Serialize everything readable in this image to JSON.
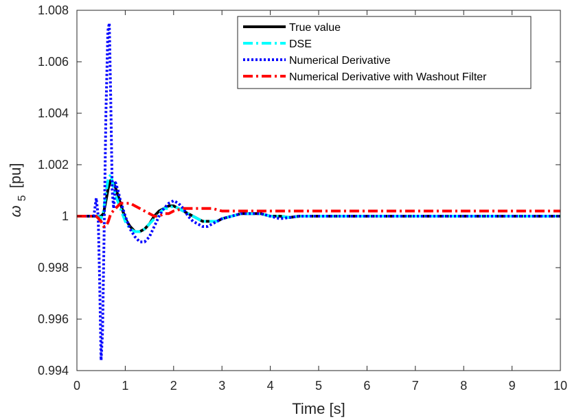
{
  "chart_data": {
    "type": "line",
    "title": "",
    "xlabel": "Time [s]",
    "ylabel_symbol": "ω",
    "ylabel_subscript": "5",
    "ylabel_unit": "[pu]",
    "xlim": [
      0,
      10
    ],
    "ylim": [
      0.994,
      1.008
    ],
    "xticks": [
      0,
      1,
      2,
      3,
      4,
      5,
      6,
      7,
      8,
      9,
      10
    ],
    "xtick_labels": [
      "0",
      "1",
      "2",
      "3",
      "4",
      "5",
      "6",
      "7",
      "8",
      "9",
      "10"
    ],
    "yticks": [
      0.994,
      0.996,
      0.998,
      1.0,
      1.002,
      1.004,
      1.006,
      1.008
    ],
    "ytick_labels": [
      "0.994",
      "0.996",
      "0.998",
      "1",
      "1.002",
      "1.004",
      "1.006",
      "1.008"
    ],
    "grid": false,
    "legend_position": "top-right",
    "series": [
      {
        "name": "True value",
        "color": "#000000",
        "style": "solid",
        "x": [
          0,
          0.45,
          0.5,
          0.55,
          0.6,
          0.65,
          0.7,
          0.75,
          0.8,
          0.9,
          1.0,
          1.1,
          1.2,
          1.3,
          1.4,
          1.5,
          1.6,
          1.7,
          1.8,
          1.9,
          2.0,
          2.1,
          2.2,
          2.3,
          2.4,
          2.5,
          2.6,
          2.7,
          2.8,
          2.9,
          3.0,
          3.2,
          3.4,
          3.6,
          3.8,
          4.0,
          4.2,
          4.4,
          4.6,
          4.8,
          5.0,
          5.5,
          6.0,
          6.5,
          7.0,
          8.0,
          9.0,
          10.0
        ],
        "y": [
          1.0,
          1.0,
          1.0,
          1.0001,
          1.0006,
          1.0011,
          1.0014,
          1.0013,
          1.0011,
          1.0005,
          0.9999,
          0.9996,
          0.9994,
          0.9994,
          0.9995,
          0.9997,
          1.0,
          1.0002,
          1.0003,
          1.0004,
          1.0004,
          1.0003,
          1.0002,
          1.0001,
          1.0,
          0.9999,
          0.9998,
          0.9998,
          0.9998,
          0.9998,
          0.9999,
          1.0,
          1.0001,
          1.0001,
          1.0001,
          1.0,
          1.0,
          0.99995,
          1.0,
          1.0,
          1.0,
          1.0,
          1.0,
          1.0,
          1.0,
          1.0,
          1.0,
          1.0
        ]
      },
      {
        "name": "DSE",
        "color": "#00ffff",
        "style": "dashdot",
        "x": [
          0,
          0.45,
          0.5,
          0.55,
          0.6,
          0.65,
          0.7,
          0.75,
          0.8,
          0.9,
          1.0,
          1.1,
          1.2,
          1.3,
          1.4,
          1.5,
          1.6,
          1.7,
          1.8,
          1.9,
          2.0,
          2.1,
          2.2,
          2.3,
          2.4,
          2.5,
          2.6,
          2.7,
          2.8,
          2.9,
          3.0,
          3.2,
          3.4,
          3.6,
          3.8,
          4.0,
          4.2,
          4.4,
          4.6,
          4.8,
          5.0,
          5.5,
          6.0,
          6.5,
          7.0,
          8.0,
          9.0,
          10.0
        ],
        "y": [
          1.0,
          1.0,
          0.9999,
          1.0002,
          1.0009,
          1.0015,
          1.0016,
          1.0012,
          1.0008,
          1.0003,
          0.9998,
          0.9995,
          0.9994,
          0.9994,
          0.9995,
          0.9997,
          0.9999,
          1.0001,
          1.0003,
          1.0003,
          1.0004,
          1.0003,
          1.0002,
          1.0001,
          1.0,
          0.9999,
          0.9998,
          0.9998,
          0.9998,
          0.9998,
          0.9999,
          1.0,
          1.0001,
          1.0001,
          1.0001,
          1.0,
          1.0,
          0.99995,
          1.0,
          1.0,
          1.0,
          1.0,
          1.0,
          1.0,
          1.0,
          1.0,
          1.0,
          1.0
        ]
      },
      {
        "name": "Numerical Derivative",
        "color": "#0000ff",
        "style": "dotted",
        "x": [
          0,
          0.35,
          0.4,
          0.44,
          0.47,
          0.5,
          0.53,
          0.56,
          0.6,
          0.64,
          0.67,
          0.7,
          0.73,
          0.76,
          0.8,
          0.85,
          0.9,
          1.0,
          1.1,
          1.2,
          1.3,
          1.4,
          1.5,
          1.6,
          1.7,
          1.8,
          1.9,
          2.0,
          2.1,
          2.2,
          2.3,
          2.4,
          2.5,
          2.6,
          2.7,
          2.8,
          2.9,
          3.0,
          3.2,
          3.4,
          3.6,
          3.8,
          4.0,
          4.2,
          4.4,
          4.6,
          4.8,
          5.0,
          5.5,
          6.0,
          6.5,
          7.0,
          8.0,
          9.0,
          10.0
        ],
        "y": [
          1.0,
          1.0,
          1.0007,
          1.0,
          0.9975,
          0.9944,
          0.9955,
          0.999,
          1.004,
          1.0072,
          1.0075,
          1.0045,
          1.001,
          1.0003,
          1.0013,
          1.001,
          1.0006,
          1.0,
          0.9995,
          0.9992,
          0.999,
          0.999,
          0.9992,
          0.9996,
          1.0,
          1.0003,
          1.0005,
          1.0006,
          1.0005,
          1.0003,
          1.0,
          0.9998,
          0.9997,
          0.9996,
          0.9996,
          0.9997,
          0.9998,
          0.9999,
          1.0,
          1.0001,
          1.0001,
          1.0001,
          1.0,
          0.9999,
          0.99995,
          1.0,
          1.0,
          1.0,
          1.0,
          1.0,
          1.0,
          1.0,
          1.0,
          1.0,
          1.0
        ]
      },
      {
        "name": "Numerical Derivative with Washout Filter",
        "color": "#ff0000",
        "style": "dashdot",
        "x": [
          0,
          0.4,
          0.5,
          0.55,
          0.6,
          0.65,
          0.7,
          0.8,
          0.9,
          1.0,
          1.1,
          1.2,
          1.3,
          1.4,
          1.5,
          1.6,
          1.7,
          1.8,
          1.9,
          2.0,
          2.2,
          2.4,
          2.6,
          2.8,
          3.0,
          3.2,
          3.4,
          3.6,
          3.8,
          4.0,
          4.2,
          4.4,
          4.6,
          4.8,
          5.0,
          6.0,
          7.0,
          8.0,
          9.0,
          10.0
        ],
        "y": [
          1.0,
          1.0,
          0.9998,
          0.9996,
          0.9996,
          0.9998,
          1.0001,
          1.0003,
          1.0005,
          1.0005,
          1.0005,
          1.0004,
          1.0003,
          1.0002,
          1.0001,
          1.0,
          1.0,
          1.0001,
          1.0001,
          1.0002,
          1.0003,
          1.0003,
          1.0003,
          1.0003,
          1.0002,
          1.0002,
          1.0002,
          1.0002,
          1.0002,
          1.0002,
          1.0002,
          1.0002,
          1.0002,
          1.0002,
          1.0002,
          1.0002,
          1.0002,
          1.0002,
          1.0002,
          1.0002
        ]
      }
    ]
  }
}
